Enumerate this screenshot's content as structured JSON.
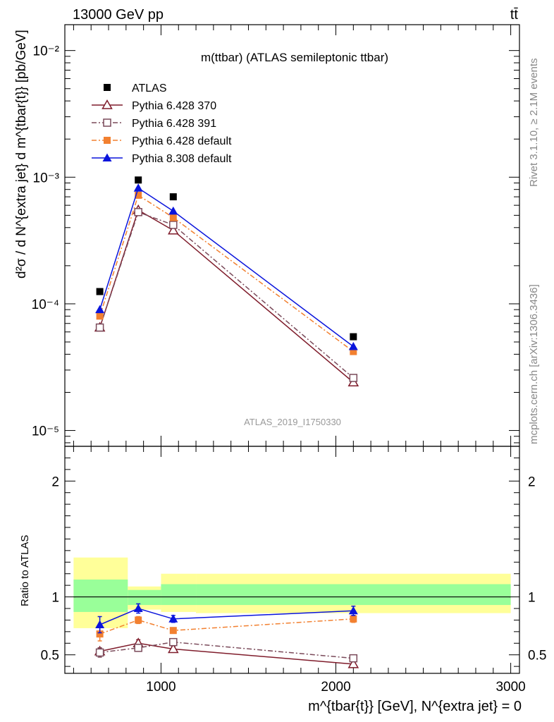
{
  "header": {
    "energy_label": "13000 GeV pp",
    "process_label": "tt̄"
  },
  "side_labels": {
    "rivet": "Rivet 3.1.10, ≥ 2.1M events",
    "mcplots": "mcplots.cern.ch [arXiv:1306.3436]"
  },
  "chart_data": [
    {
      "type": "scatter",
      "panel": "main",
      "title": "m(ttbar) (ATLAS semileptonic ttbar)",
      "watermark": "ATLAS_2019_I1750330",
      "ylabel": "d²σ / d N^{extra jet} d m^{tbar{t}} [pb/GeV]",
      "yscale": "log",
      "ylim": [
        7.5e-06,
        0.016
      ],
      "xlim": [
        450,
        3050
      ],
      "ytick_labels": [
        "10⁻⁵",
        "10⁻⁴",
        "10⁻³",
        "10⁻²"
      ],
      "legend_position": "top-left",
      "x": [
        650,
        870,
        1070,
        2100
      ],
      "series": [
        {
          "name": "ATLAS",
          "color": "#000000",
          "marker": "filled-square",
          "line": "none",
          "values": [
            0.000125,
            0.00095,
            0.0007,
            5.5e-05
          ]
        },
        {
          "name": "Pythia 6.428 370",
          "color": "#7f1c2b",
          "marker": "open-triangle",
          "line": "solid",
          "values": [
            6.5e-05,
            0.00055,
            0.00038,
            2.4e-05
          ]
        },
        {
          "name": "Pythia 6.428 391",
          "color": "#7a4a5a",
          "marker": "open-square",
          "line": "dashdot",
          "values": [
            6.5e-05,
            0.00053,
            0.00042,
            2.6e-05
          ]
        },
        {
          "name": "Pythia 6.428 default",
          "color": "#f28030",
          "marker": "filled-square",
          "line": "dashdot",
          "values": [
            8e-05,
            0.00072,
            0.00048,
            4.2e-05
          ]
        },
        {
          "name": "Pythia 8.308 default",
          "color": "#0a14dc",
          "marker": "filled-triangle",
          "line": "solid",
          "values": [
            9e-05,
            0.00082,
            0.00054,
            4.6e-05
          ]
        }
      ]
    },
    {
      "type": "line",
      "panel": "ratio",
      "ylabel": "Ratio to ATLAS",
      "xlabel": "m^{tbar{t}} [GeV], N^{extra jet} = 0",
      "ylim": [
        0.34,
        2.3
      ],
      "xlim": [
        450,
        3050
      ],
      "ytick_labels": [
        "0.5",
        "1",
        "2"
      ],
      "xtick_labels": [
        "1000",
        "2000",
        "3000"
      ],
      "bands": [
        {
          "x_range": [
            500,
            810
          ],
          "inner": [
            0.87,
            1.15
          ],
          "outer": [
            0.73,
            1.34
          ]
        },
        {
          "x_range": [
            810,
            1000
          ],
          "inner": [
            0.93,
            1.06
          ],
          "outer": [
            0.89,
            1.09
          ]
        },
        {
          "x_range": [
            1000,
            1200
          ],
          "inner": [
            0.93,
            1.11
          ],
          "outer": [
            0.87,
            1.2
          ]
        },
        {
          "x_range": [
            1200,
            3000
          ],
          "inner": [
            0.93,
            1.11
          ],
          "outer": [
            0.86,
            1.2
          ]
        }
      ],
      "band_colors": {
        "inner": "#99ff99",
        "outer": "#ffff99"
      },
      "x": [
        650,
        870,
        1070,
        2100
      ],
      "series": [
        {
          "name": "Pythia 6.428 370",
          "color": "#7f1c2b",
          "marker": "open-triangle",
          "line": "solid",
          "values": [
            0.53,
            0.6,
            0.55,
            0.42
          ],
          "errors": [
            0.03,
            0.03,
            0.02,
            0.03
          ]
        },
        {
          "name": "Pythia 6.428 391",
          "color": "#7a4a5a",
          "marker": "open-square",
          "line": "dashdot",
          "values": [
            0.52,
            0.56,
            0.61,
            0.47
          ],
          "errors": [
            0.04,
            0.03,
            0.02,
            0.03
          ]
        },
        {
          "name": "Pythia 6.428 default",
          "color": "#f28030",
          "marker": "filled-square",
          "line": "dashdot",
          "values": [
            0.68,
            0.8,
            0.71,
            0.81
          ],
          "errors": [
            0.06,
            0.03,
            0.02,
            0.03
          ]
        },
        {
          "name": "Pythia 8.308 default",
          "color": "#0a14dc",
          "marker": "filled-triangle",
          "line": "solid",
          "values": [
            0.76,
            0.9,
            0.81,
            0.88
          ],
          "errors": [
            0.07,
            0.04,
            0.03,
            0.04
          ]
        }
      ]
    }
  ]
}
